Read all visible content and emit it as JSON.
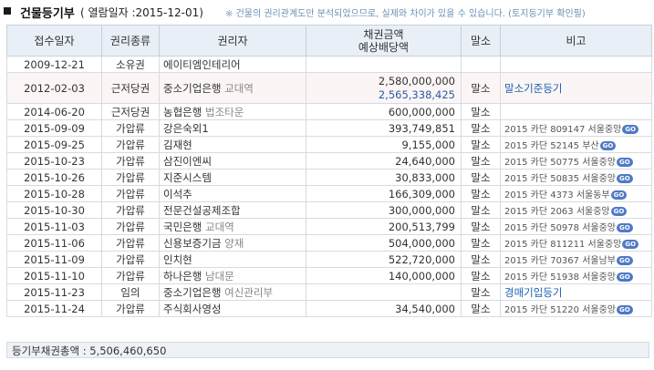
{
  "header": {
    "title": "건물등기부",
    "subtitle": "( 열람일자 :2015-12-01)",
    "notice_mark": "※",
    "notice": "건물의 권리관계도만 분석되었으므로, 실제와 차이가 있을 수 있습니다. (토지등기부 확인필)"
  },
  "table": {
    "columns": [
      "접수일자",
      "권리종류",
      "권리자",
      "채권금액",
      "예상배당액",
      "말소",
      "비고"
    ],
    "rows": [
      {
        "date": "2009-12-21",
        "type": "소유권",
        "holder": "에이티엠인테리어",
        "holder_sub": "",
        "amount": "",
        "amount2": "",
        "cancel": "",
        "note": "",
        "note_type": "none"
      },
      {
        "date": "2012-02-03",
        "type": "근저당권",
        "holder": "중소기업은행",
        "holder_sub": "교대역",
        "amount": "2,580,000,000",
        "amount2": "2,565,338,425",
        "cancel": "말소",
        "note": "말소기준등기",
        "note_type": "link"
      },
      {
        "date": "2014-06-20",
        "type": "근저당권",
        "holder": "농협은행",
        "holder_sub": "법조타운",
        "amount": "600,000,000",
        "amount2": "",
        "cancel": "말소",
        "note": "",
        "note_type": "none"
      },
      {
        "date": "2015-09-09",
        "type": "가압류",
        "holder": "강은숙외1",
        "holder_sub": "",
        "amount": "393,749,851",
        "amount2": "",
        "cancel": "말소",
        "note": "2015 카단 809147 서울중앙",
        "note_type": "go"
      },
      {
        "date": "2015-09-25",
        "type": "가압류",
        "holder": "김재현",
        "holder_sub": "",
        "amount": "9,155,000",
        "amount2": "",
        "cancel": "말소",
        "note": "2015 카단 52145 부산",
        "note_type": "go"
      },
      {
        "date": "2015-10-23",
        "type": "가압류",
        "holder": "삼진이엔씨",
        "holder_sub": "",
        "amount": "24,640,000",
        "amount2": "",
        "cancel": "말소",
        "note": "2015 카단 50775 서울중앙",
        "note_type": "go"
      },
      {
        "date": "2015-10-26",
        "type": "가압류",
        "holder": "지준시스템",
        "holder_sub": "",
        "amount": "30,833,000",
        "amount2": "",
        "cancel": "말소",
        "note": "2015 카단 50835 서울중앙",
        "note_type": "go"
      },
      {
        "date": "2015-10-28",
        "type": "가압류",
        "holder": "이석추",
        "holder_sub": "",
        "amount": "166,309,000",
        "amount2": "",
        "cancel": "말소",
        "note": "2015 카단 4373 서울동부",
        "note_type": "go"
      },
      {
        "date": "2015-10-30",
        "type": "가압류",
        "holder": "전문건설공제조합",
        "holder_sub": "",
        "amount": "300,000,000",
        "amount2": "",
        "cancel": "말소",
        "note": "2015 카단 2063 서울중앙",
        "note_type": "go"
      },
      {
        "date": "2015-11-03",
        "type": "가압류",
        "holder": "국민은행",
        "holder_sub": "교대역",
        "amount": "200,513,799",
        "amount2": "",
        "cancel": "말소",
        "note": "2015 카단 50978 서울중앙",
        "note_type": "go"
      },
      {
        "date": "2015-11-06",
        "type": "가압류",
        "holder": "신용보증기금",
        "holder_sub": "양재",
        "amount": "504,000,000",
        "amount2": "",
        "cancel": "말소",
        "note": "2015 카단 811211 서울중앙",
        "note_type": "go"
      },
      {
        "date": "2015-11-09",
        "type": "가압류",
        "holder": "인치현",
        "holder_sub": "",
        "amount": "522,720,000",
        "amount2": "",
        "cancel": "말소",
        "note": "2015 카단 70367 서울남부",
        "note_type": "go"
      },
      {
        "date": "2015-11-10",
        "type": "가압류",
        "holder": "하나은행",
        "holder_sub": "남대문",
        "amount": "140,000,000",
        "amount2": "",
        "cancel": "말소",
        "note": "2015 카단 51938 서울중앙",
        "note_type": "go"
      },
      {
        "date": "2015-11-23",
        "type": "임의",
        "holder": "중소기업은행",
        "holder_sub": "여신관리부",
        "amount": "",
        "amount2": "",
        "cancel": "말소",
        "note": "경매기입등기",
        "note_type": "link"
      },
      {
        "date": "2015-11-24",
        "type": "가압류",
        "holder": "주식회사영성",
        "holder_sub": "",
        "amount": "34,540,000",
        "amount2": "",
        "cancel": "말소",
        "note": "2015 카단 51220 서울중앙",
        "note_type": "go"
      }
    ]
  },
  "go_label": "GO",
  "footer": {
    "label": "등기부채권총액",
    "separator": " : ",
    "total": "5,506,460,650"
  },
  "colors": {
    "header_bg": "#e9eff7",
    "link": "#1d5fb3",
    "amount_secondary": "#2b59a8",
    "go_badge": "#4f79c7",
    "shaded_row": "#fbf6f5"
  }
}
